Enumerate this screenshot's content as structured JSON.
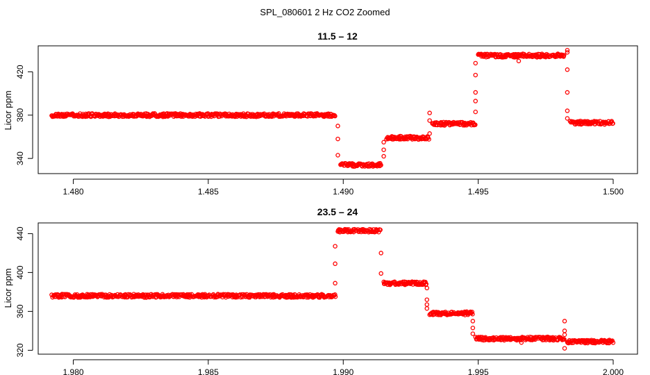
{
  "figure": {
    "title": "SPL_080601  2 Hz CO2 Zoomed",
    "point_color": "#ff0000",
    "axis_color": "#000000"
  },
  "chart_data": [
    {
      "type": "scatter",
      "title": "11.5 – 12",
      "xlabel": "",
      "ylabel": "Licor ppm",
      "xlim": [
        1.4787,
        1.5009
      ],
      "ylim": [
        326,
        444
      ],
      "xticks": [
        1.48,
        1.485,
        1.49,
        1.495,
        1.5
      ],
      "xtick_labels": [
        "1.480",
        "1.485",
        "1.490",
        "1.495",
        "1.500"
      ],
      "yticks": [
        340,
        380,
        420
      ],
      "ytick_labels": [
        "340",
        "380",
        "420"
      ],
      "grid": false,
      "marker": "open-circle",
      "series": [
        {
          "segments": [
            {
              "x": [
                1.4792,
                1.4897
              ],
              "y": 380
            },
            {
              "x": [
                1.4899,
                1.4914
              ],
              "y": 334
            },
            {
              "x": [
                1.4916,
                1.4932
              ],
              "y": 359
            },
            {
              "x": [
                1.4933,
                1.4949
              ],
              "y": 372
            },
            {
              "x": [
                1.495,
                1.4982
              ],
              "y": 435
            },
            {
              "x": [
                1.4984,
                1.5
              ],
              "y": 373
            }
          ],
          "transitions": [
            {
              "x": 1.4898,
              "y": [
                370,
                358,
                343
              ]
            },
            {
              "x": 1.4915,
              "y": [
                342,
                348,
                355
              ]
            },
            {
              "x": 1.4932,
              "y": [
                363,
                375,
                382
              ]
            },
            {
              "x": 1.4949,
              "y": [
                383,
                393,
                401,
                417,
                428
              ]
            },
            {
              "x": 1.4983,
              "y": [
                438,
                422,
                401,
                384,
                377
              ]
            }
          ],
          "outliers": [
            {
              "x": 1.4965,
              "y": 430
            },
            {
              "x": 1.4983,
              "y": 440
            }
          ]
        }
      ]
    },
    {
      "type": "scatter",
      "title": "23.5 – 24",
      "xlabel": "",
      "ylabel": "Licor ppm",
      "xlim": [
        1.9787,
        2.0009
      ],
      "ylim": [
        316,
        451
      ],
      "xticks": [
        1.98,
        1.985,
        1.99,
        1.995,
        2.0
      ],
      "xtick_labels": [
        "1.980",
        "1.985",
        "1.990",
        "1.995",
        "2.000"
      ],
      "yticks": [
        320,
        360,
        400,
        440
      ],
      "ytick_labels": [
        "320",
        "360",
        "400",
        "440"
      ],
      "grid": false,
      "marker": "open-circle",
      "series": [
        {
          "segments": [
            {
              "x": [
                1.9792,
                1.9897
              ],
              "y": 376
            },
            {
              "x": [
                1.9898,
                1.9914
              ],
              "y": 443
            },
            {
              "x": [
                1.9915,
                1.9931
              ],
              "y": 389
            },
            {
              "x": [
                1.9932,
                1.9948
              ],
              "y": 358
            },
            {
              "x": [
                1.9949,
                1.9982
              ],
              "y": 332
            },
            {
              "x": [
                1.9983,
                2.0
              ],
              "y": 329
            }
          ],
          "transitions": [
            {
              "x": 1.9897,
              "y": [
                389,
                409,
                427
              ]
            },
            {
              "x": 1.9914,
              "y": [
                420,
                399
              ]
            },
            {
              "x": 1.9931,
              "y": [
                384,
                372,
                367,
                363
              ]
            },
            {
              "x": 1.9948,
              "y": [
                350,
                343,
                337
              ]
            },
            {
              "x": 1.9982,
              "y": [
                350,
                340,
                336
              ]
            }
          ],
          "outliers": [
            {
              "x": 1.9966,
              "y": 328
            },
            {
              "x": 1.9982,
              "y": 322
            }
          ]
        }
      ]
    }
  ]
}
